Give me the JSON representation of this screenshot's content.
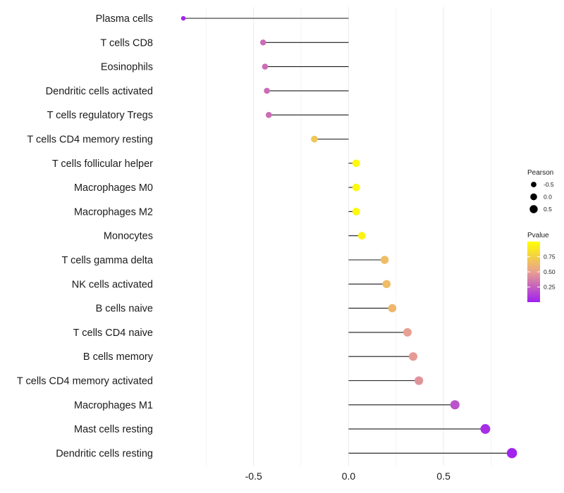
{
  "chart_data": {
    "type": "lollipop",
    "title": "",
    "xlabel": "",
    "ylabel": "",
    "xlim": [
      -1.0,
      0.93
    ],
    "x_ticks": [
      -0.5,
      0.0,
      0.5
    ],
    "x_tick_labels": [
      "-0.5",
      "0.0",
      "0.5"
    ],
    "grid": true,
    "categories": [
      "Plasma cells",
      "T cells CD8",
      "Eosinophils",
      "Dendritic cells activated",
      "T cells regulatory  Tregs",
      "T cells CD4 memory resting",
      "T cells follicular helper",
      "Macrophages M0",
      "Macrophages M2",
      "Monocytes",
      "T cells gamma delta",
      "NK cells activated",
      "B cells naive",
      "T cells CD4 naive",
      "B cells memory",
      "T cells CD4 memory activated",
      "Macrophages M1",
      "Mast cells resting",
      "Dendritic cells resting"
    ],
    "pearson": [
      -0.87,
      -0.45,
      -0.44,
      -0.43,
      -0.42,
      -0.18,
      0.04,
      0.04,
      0.04,
      0.07,
      0.19,
      0.2,
      0.23,
      0.31,
      0.34,
      0.37,
      0.56,
      0.72,
      0.86
    ],
    "pvalue": [
      0.02,
      0.3,
      0.3,
      0.3,
      0.3,
      0.7,
      0.97,
      0.97,
      0.97,
      0.93,
      0.65,
      0.65,
      0.62,
      0.5,
      0.48,
      0.45,
      0.2,
      0.05,
      0.01
    ],
    "legend_size": {
      "title": "Pearson",
      "labels": [
        "-0.5",
        "0.0",
        "0.5"
      ],
      "values": [
        -0.5,
        0.0,
        0.5
      ]
    },
    "legend_color": {
      "title": "Pvalue",
      "labels": [
        "0.75",
        "0.50",
        "0.25"
      ],
      "values": [
        0.75,
        0.5,
        0.25
      ],
      "range": [
        0.0,
        1.0
      ],
      "low_color": "#a020f0",
      "mid_color": "#e8a090",
      "high_color": "#ffff00"
    },
    "legend_position": "right"
  },
  "colors": {
    "segment": "#1a1a1a",
    "grid": "#ececec",
    "background": "#ffffff"
  }
}
